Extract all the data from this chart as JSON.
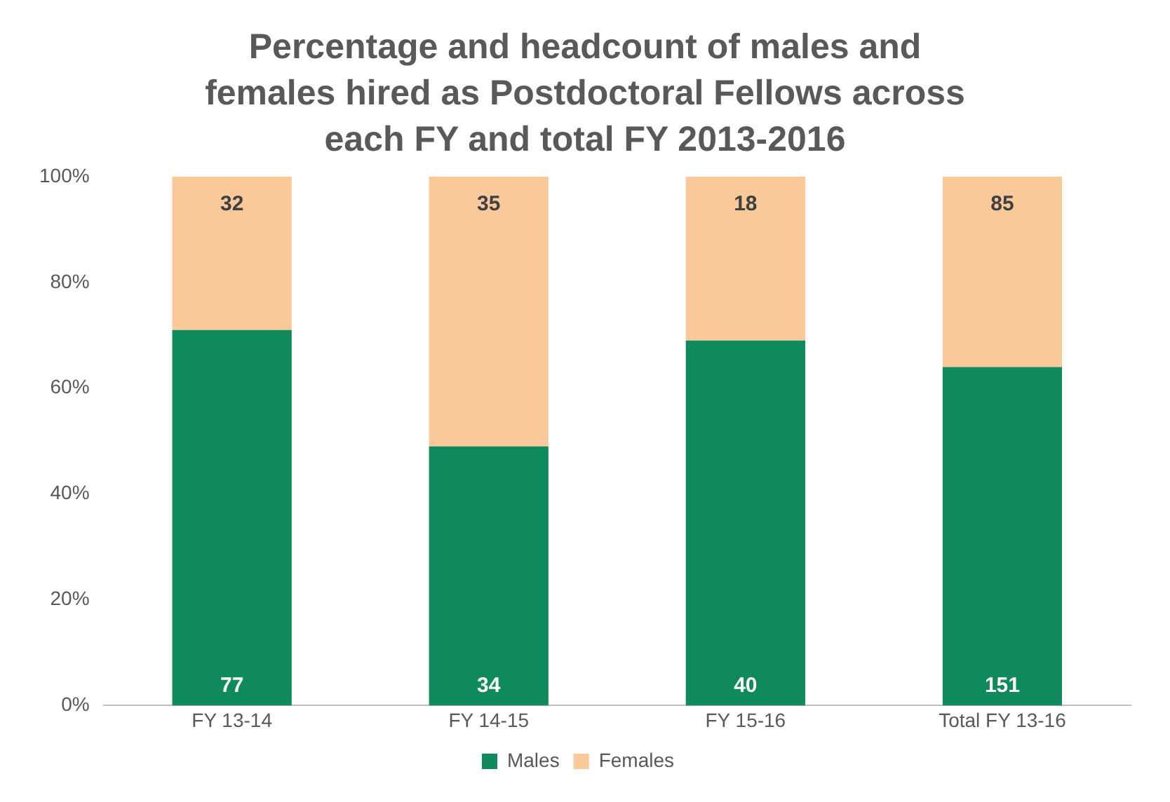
{
  "chart_data": {
    "type": "bar",
    "title": "Percentage and headcount of males and females hired as Postdoctoral Fellows across each FY and total FY 2013-2016",
    "categories": [
      "FY 13-14",
      "FY 14-15",
      "FY 15-16",
      "Total FY 13-16"
    ],
    "stacked": true,
    "series": [
      {
        "name": "Males",
        "color": "#0e8a5c",
        "values": [
          71,
          49,
          69,
          64
        ]
      },
      {
        "name": "Females",
        "color": "#f9c99a",
        "values": [
          29,
          51,
          31,
          36
        ]
      }
    ],
    "annotations": [
      {
        "text": "77",
        "x": "FY 13-14",
        "y": 0
      },
      {
        "text": "34",
        "x": "FY 14-15",
        "y": 0
      },
      {
        "text": "40",
        "x": "FY 15-16",
        "y": 0
      },
      {
        "text": "151",
        "x": "Total FY 13-16",
        "y": 0
      },
      {
        "text": "32",
        "x": "FY 13-14",
        "y": 100
      },
      {
        "text": "35",
        "x": "FY 14-15",
        "y": 100
      },
      {
        "text": "18",
        "x": "FY 15-16",
        "y": 100
      },
      {
        "text": "85",
        "x": "Total FY 13-16",
        "y": 100
      }
    ],
    "ylim": [
      0,
      100
    ],
    "yticks": [
      {
        "value": 0,
        "label": "0%"
      },
      {
        "value": 20,
        "label": "20%"
      },
      {
        "value": 40,
        "label": "40%"
      },
      {
        "value": 60,
        "label": "60%"
      },
      {
        "value": 80,
        "label": "80%"
      },
      {
        "value": 100,
        "label": "100%"
      }
    ],
    "legend": "bottom"
  }
}
